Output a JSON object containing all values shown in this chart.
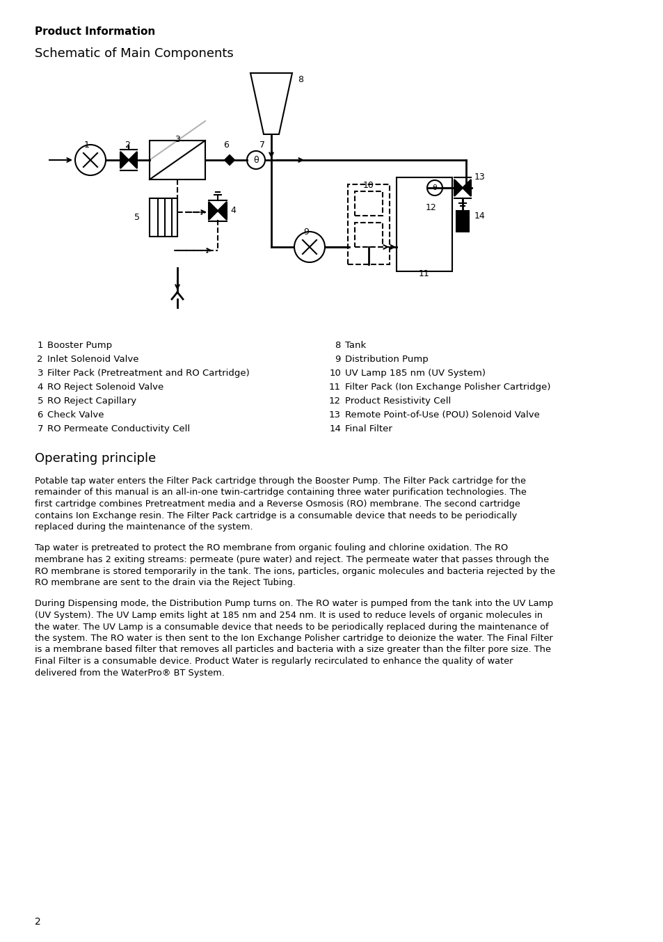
{
  "title": "Product Information",
  "subtitle": "Schematic of Main Components",
  "section2_title": "Operating principle",
  "page_number": "2",
  "legend_left": [
    [
      "1",
      "Booster Pump"
    ],
    [
      "2",
      "Inlet Solenoid Valve"
    ],
    [
      "3",
      "Filter Pack (Pretreatment and RO Cartridge)"
    ],
    [
      "4",
      "RO Reject Solenoid Valve"
    ],
    [
      "5",
      "RO Reject Capillary"
    ],
    [
      "6",
      "Check Valve"
    ],
    [
      "7",
      "RO Permeate Conductivity Cell"
    ]
  ],
  "legend_right": [
    [
      "8",
      "Tank"
    ],
    [
      "9",
      "Distribution Pump"
    ],
    [
      "10",
      "UV Lamp 185 nm (UV System)"
    ],
    [
      "11",
      "Filter Pack (Ion Exchange Polisher Cartridge)"
    ],
    [
      "12",
      "Product Resistivity Cell"
    ],
    [
      "13",
      "Remote Point-of-Use (POU) Solenoid Valve"
    ],
    [
      "14",
      "Final Filter"
    ]
  ],
  "para1": "Potable tap water enters the Filter Pack cartridge through the Booster Pump. The Filter Pack cartridge for the\nremainder of this manual is an all-in-one twin-cartridge containing three water purification technologies. The\nfirst cartridge combines Pretreatment media and a Reverse Osmosis (RO) membrane. The second cartridge\ncontains Ion Exchange resin. The Filter Pack cartridge is a consumable device that needs to be periodically\nreplaced during the maintenance of the system.",
  "para2": "Tap water is pretreated to protect the RO membrane from organic fouling and chlorine oxidation. The RO\nmembrane has 2 exiting streams: permeate (pure water) and reject. The permeate water that passes through the\nRO membrane is stored temporarily in the tank. The ions, particles, organic molecules and bacteria rejected by the\nRO membrane are sent to the drain via the Reject Tubing.",
  "para3": "During Dispensing mode, the Distribution Pump turns on. The RO water is pumped from the tank into the UV Lamp\n(UV System). The UV Lamp emits light at 185 nm and 254 nm. It is used to reduce levels of organic molecules in\nthe water. The UV Lamp is a consumable device that needs to be periodically replaced during the maintenance of\nthe system. The RO water is then sent to the Ion Exchange Polisher cartridge to deionize the water. The Final Filter\nis a membrane based filter that removes all particles and bacteria with a size greater than the filter pore size. The\nFinal Filter is a consumable device. Product Water is regularly recirculated to enhance the quality of water\ndelivered from the WaterPro® BT System.",
  "bg_color": "#ffffff",
  "text_color": "#000000"
}
